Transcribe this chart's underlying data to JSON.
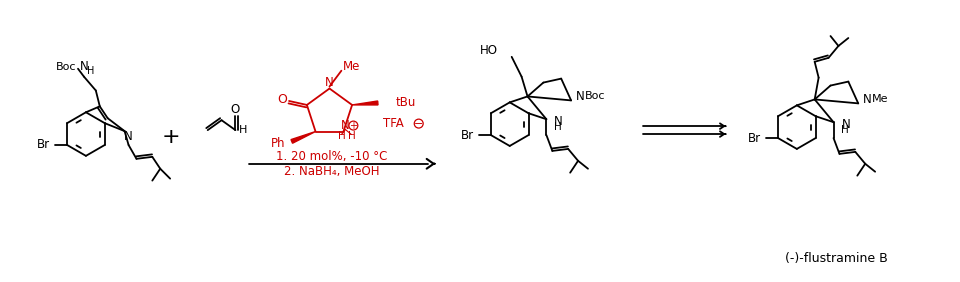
{
  "bg_color": "#ffffff",
  "black": "#000000",
  "red": "#cc0000",
  "fig_width": 9.6,
  "fig_height": 2.82,
  "dpi": 100,
  "label_flustramine": "(-)-flustramine B",
  "conditions_1": "1. 20 mol%, -10 °C",
  "conditions_2": "2. NaBH₄, MeOH"
}
